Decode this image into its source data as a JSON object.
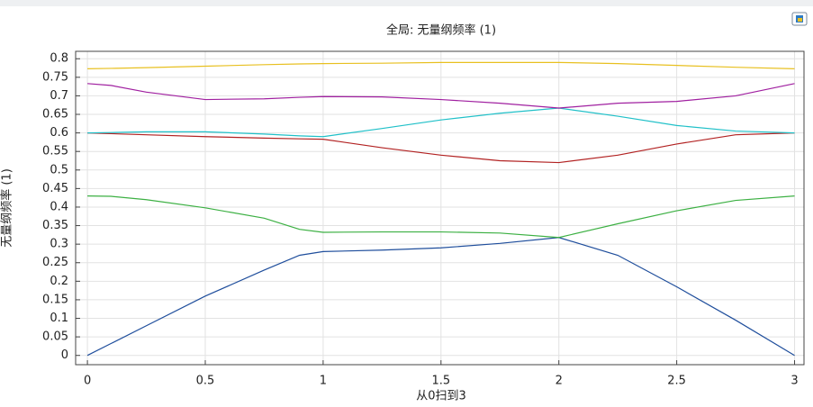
{
  "chart_data": {
    "type": "line",
    "title": "全局: 无量纲频率 (1)",
    "x_label": "从0扫到3",
    "y_label": "无量纲频率 (1)",
    "x": [
      0,
      0.1,
      0.25,
      0.5,
      0.75,
      0.9,
      1,
      1.25,
      1.5,
      1.75,
      2,
      2.25,
      2.5,
      2.75,
      3
    ],
    "series": [
      {
        "color": "#1f4e9c",
        "values": [
          0,
          0.032,
          0.08,
          0.16,
          0.23,
          0.27,
          0.28,
          0.284,
          0.29,
          0.302,
          0.318,
          0.27,
          0.185,
          0.095,
          0
        ]
      },
      {
        "color": "#3cb043",
        "values": [
          0.43,
          0.429,
          0.42,
          0.398,
          0.37,
          0.34,
          0.332,
          0.333,
          0.333,
          0.33,
          0.318,
          0.355,
          0.39,
          0.418,
          0.43
        ]
      },
      {
        "color": "#b22222",
        "values": [
          0.6,
          0.598,
          0.595,
          0.59,
          0.586,
          0.584,
          0.583,
          0.56,
          0.54,
          0.525,
          0.52,
          0.54,
          0.57,
          0.595,
          0.6
        ]
      },
      {
        "color": "#20c0c8",
        "values": [
          0.6,
          0.601,
          0.603,
          0.603,
          0.597,
          0.592,
          0.59,
          0.612,
          0.635,
          0.653,
          0.667,
          0.645,
          0.62,
          0.605,
          0.6
        ]
      },
      {
        "color": "#a020a0",
        "values": [
          0.733,
          0.728,
          0.71,
          0.69,
          0.692,
          0.696,
          0.698,
          0.697,
          0.69,
          0.68,
          0.667,
          0.68,
          0.685,
          0.7,
          0.733
        ]
      },
      {
        "color": "#e8c020",
        "values": [
          0.773,
          0.774,
          0.776,
          0.78,
          0.784,
          0.786,
          0.787,
          0.788,
          0.79,
          0.79,
          0.79,
          0.787,
          0.782,
          0.777,
          0.773
        ]
      }
    ],
    "xlim": [
      -0.05,
      3.04
    ],
    "ylim": [
      -0.025,
      0.82
    ],
    "xticks": [
      0,
      0.5,
      1,
      1.5,
      2,
      2.5,
      3
    ],
    "yticks": [
      0,
      0.05,
      0.1,
      0.15,
      0.2,
      0.25,
      0.3,
      0.35,
      0.4,
      0.45,
      0.5,
      0.55,
      0.6,
      0.65,
      0.7,
      0.75,
      0.8
    ],
    "grid": true
  }
}
